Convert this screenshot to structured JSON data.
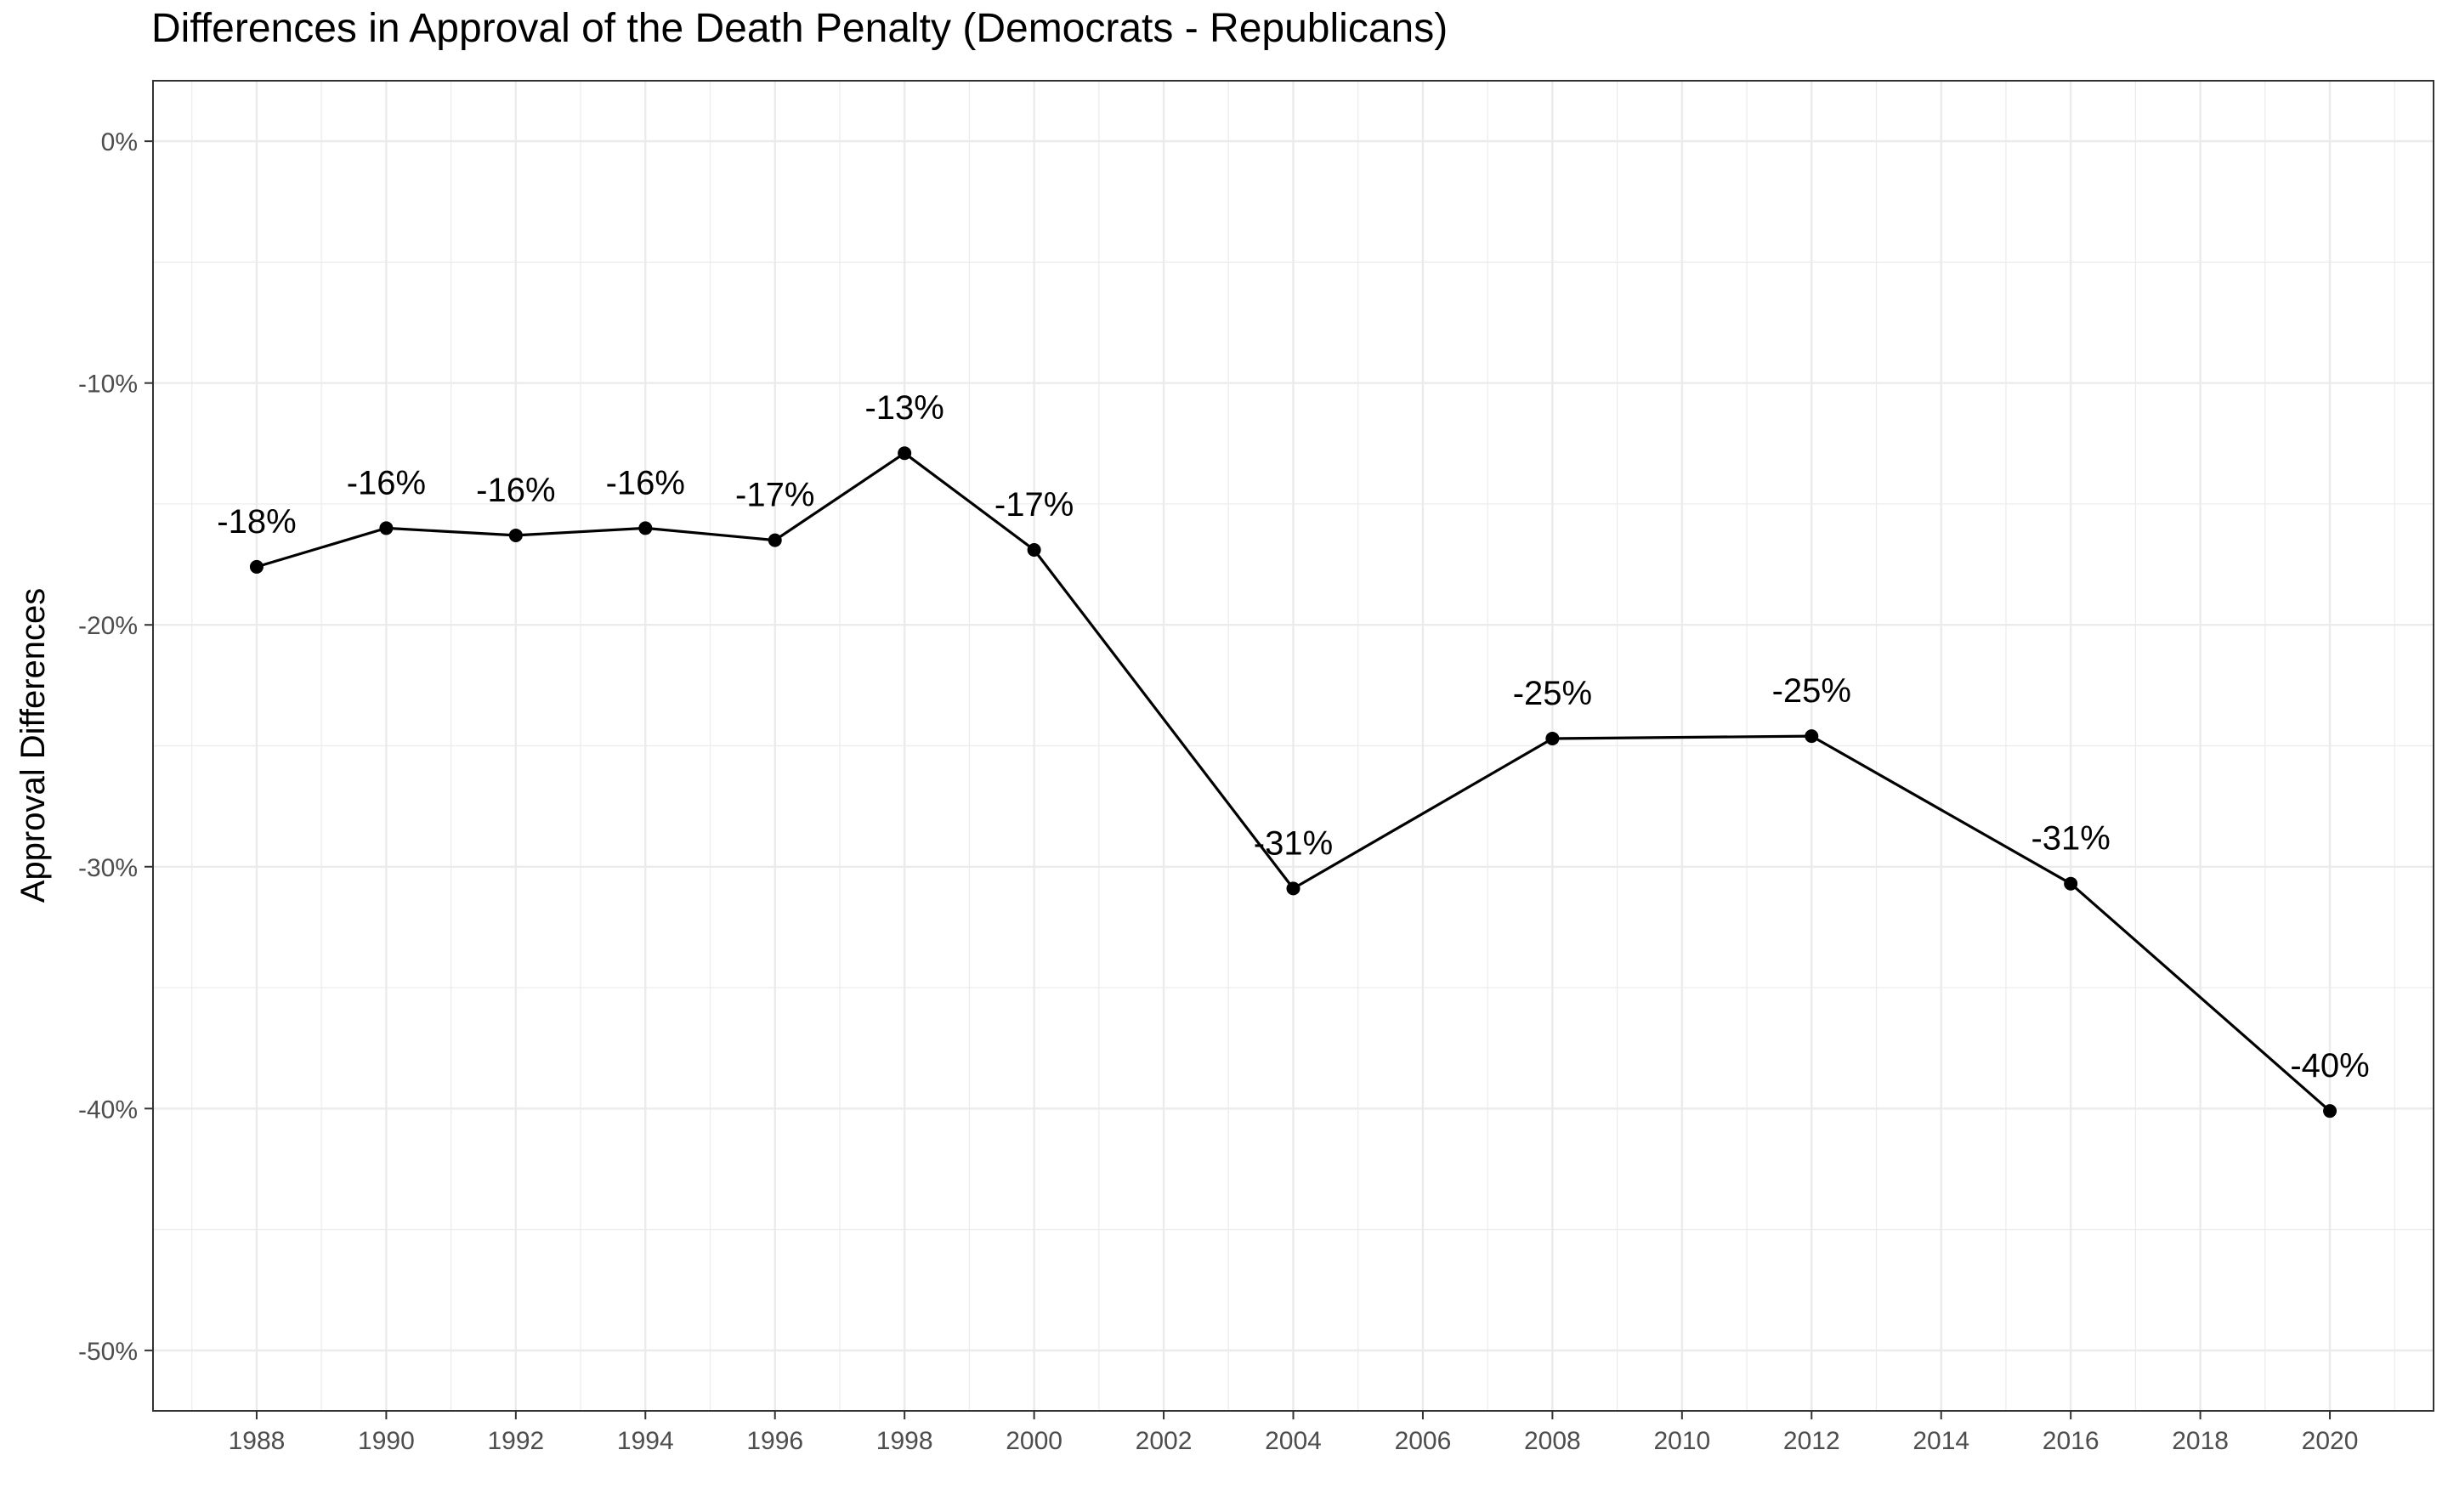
{
  "chart_data": {
    "type": "line",
    "title": "Differences in Approval of the Death Penalty (Democrats - Republicans)",
    "xlabel": "",
    "ylabel": "Approval Differences",
    "x": [
      1988,
      1990,
      1992,
      1994,
      1996,
      1998,
      2000,
      2004,
      2008,
      2012,
      2016,
      2020
    ],
    "values": [
      -17.6,
      -16.0,
      -16.3,
      -16.0,
      -16.5,
      -12.9,
      -16.9,
      -30.9,
      -24.7,
      -24.6,
      -30.7,
      -40.1
    ],
    "data_labels": [
      "-18%",
      "-16%",
      "-16%",
      "-16%",
      "-17%",
      "-13%",
      "-17%",
      "-31%",
      "-25%",
      "-25%",
      "-31%",
      "-40%"
    ],
    "xlim": [
      1986.4,
      2021.6
    ],
    "ylim": [
      -52.5,
      2.5
    ],
    "x_ticks": [
      1988,
      1990,
      1992,
      1994,
      1996,
      1998,
      2000,
      2002,
      2004,
      2006,
      2008,
      2010,
      2012,
      2014,
      2016,
      2018,
      2020
    ],
    "x_tick_labels": [
      "1988",
      "1990",
      "1992",
      "1994",
      "1996",
      "1998",
      "2000",
      "2002",
      "2004",
      "2006",
      "2008",
      "2010",
      "2012",
      "2014",
      "2016",
      "2018",
      "2020"
    ],
    "y_ticks": [
      0,
      -10,
      -20,
      -30,
      -40,
      -50
    ],
    "y_tick_labels": [
      "0%",
      "-10%",
      "-20%",
      "-30%",
      "-40%",
      "-50%"
    ],
    "grid": true,
    "line_color": "#000000",
    "point_color": "#000000",
    "gridline_color": "#ebebeb",
    "panel_border_color": "#333333"
  }
}
